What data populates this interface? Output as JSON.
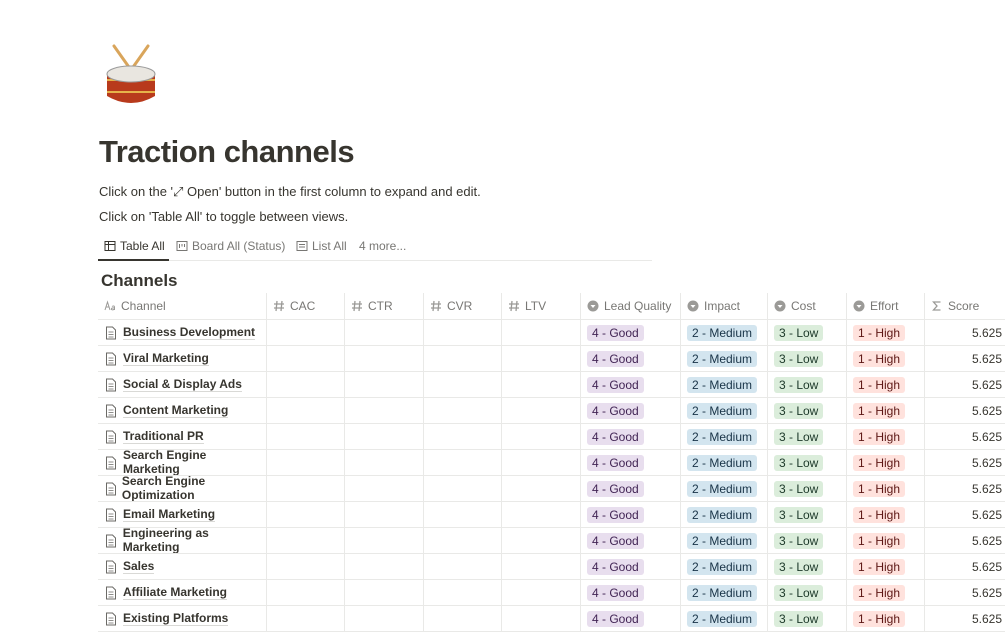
{
  "page": {
    "title": "Traction channels",
    "descriptions": [
      "Click on the '⤢ Open' button in the first column to expand and edit.",
      "Click on 'Table All' to toggle between views."
    ],
    "tabs": [
      "Table All",
      "Board All (Status)",
      "List All",
      "4 more..."
    ]
  },
  "table": {
    "title": "Channels",
    "columns": [
      "Channel",
      "CAC",
      "CTR",
      "CVR",
      "LTV",
      "Lead Quality",
      "Impact",
      "Cost",
      "Effort",
      "Score"
    ],
    "rows": [
      {
        "channel": "Business Development",
        "lead_quality": "4 - Good",
        "impact": "2 - Medium",
        "cost": "3 - Low",
        "effort": "1 - High",
        "score": "5.625"
      },
      {
        "channel": "Viral Marketing",
        "lead_quality": "4 - Good",
        "impact": "2 - Medium",
        "cost": "3 - Low",
        "effort": "1 - High",
        "score": "5.625"
      },
      {
        "channel": "Social & Display Ads",
        "lead_quality": "4 - Good",
        "impact": "2 - Medium",
        "cost": "3 - Low",
        "effort": "1 - High",
        "score": "5.625"
      },
      {
        "channel": "Content Marketing",
        "lead_quality": "4 - Good",
        "impact": "2 - Medium",
        "cost": "3 - Low",
        "effort": "1 - High",
        "score": "5.625"
      },
      {
        "channel": "Traditional PR",
        "lead_quality": "4 - Good",
        "impact": "2 - Medium",
        "cost": "3 - Low",
        "effort": "1 - High",
        "score": "5.625"
      },
      {
        "channel": "Search Engine Marketing",
        "lead_quality": "4 - Good",
        "impact": "2 - Medium",
        "cost": "3 - Low",
        "effort": "1 - High",
        "score": "5.625"
      },
      {
        "channel": "Search Engine Optimization",
        "lead_quality": "4 - Good",
        "impact": "2 - Medium",
        "cost": "3 - Low",
        "effort": "1 - High",
        "score": "5.625"
      },
      {
        "channel": "Email Marketing",
        "lead_quality": "4 - Good",
        "impact": "2 - Medium",
        "cost": "3 - Low",
        "effort": "1 - High",
        "score": "5.625"
      },
      {
        "channel": "Engineering as Marketing",
        "lead_quality": "4 - Good",
        "impact": "2 - Medium",
        "cost": "3 - Low",
        "effort": "1 - High",
        "score": "5.625"
      },
      {
        "channel": "Sales",
        "lead_quality": "4 - Good",
        "impact": "2 - Medium",
        "cost": "3 - Low",
        "effort": "1 - High",
        "score": "5.625"
      },
      {
        "channel": "Affiliate Marketing",
        "lead_quality": "4 - Good",
        "impact": "2 - Medium",
        "cost": "3 - Low",
        "effort": "1 - High",
        "score": "5.625"
      },
      {
        "channel": "Existing Platforms",
        "lead_quality": "4 - Good",
        "impact": "2 - Medium",
        "cost": "3 - Low",
        "effort": "1 - High",
        "score": "5.625"
      }
    ]
  }
}
